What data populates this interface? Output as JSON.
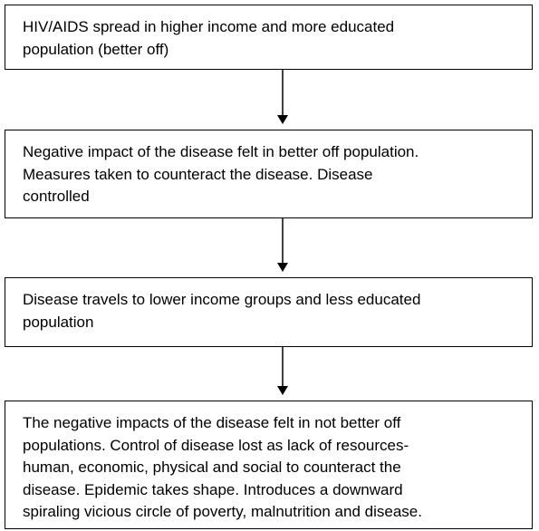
{
  "nodes": [
    {
      "lines": [
        "HIV/AIDS spread in higher income and more educated",
        "population (better off)"
      ]
    },
    {
      "lines": [
        "Negative impact of the disease felt in better off population.",
        "Measures taken to counteract the disease. Disease",
        "controlled"
      ]
    },
    {
      "lines": [
        "Disease travels to lower income groups and less educated",
        "population"
      ]
    },
    {
      "lines": [
        "The negative impacts of the disease felt in not better off",
        "populations. Control of disease lost as lack of resources-",
        "human, economic, physical and social to counteract the",
        "disease. Epidemic takes shape. Introduces a downward",
        "spiraling vicious circle of poverty, malnutrition and disease."
      ]
    }
  ]
}
